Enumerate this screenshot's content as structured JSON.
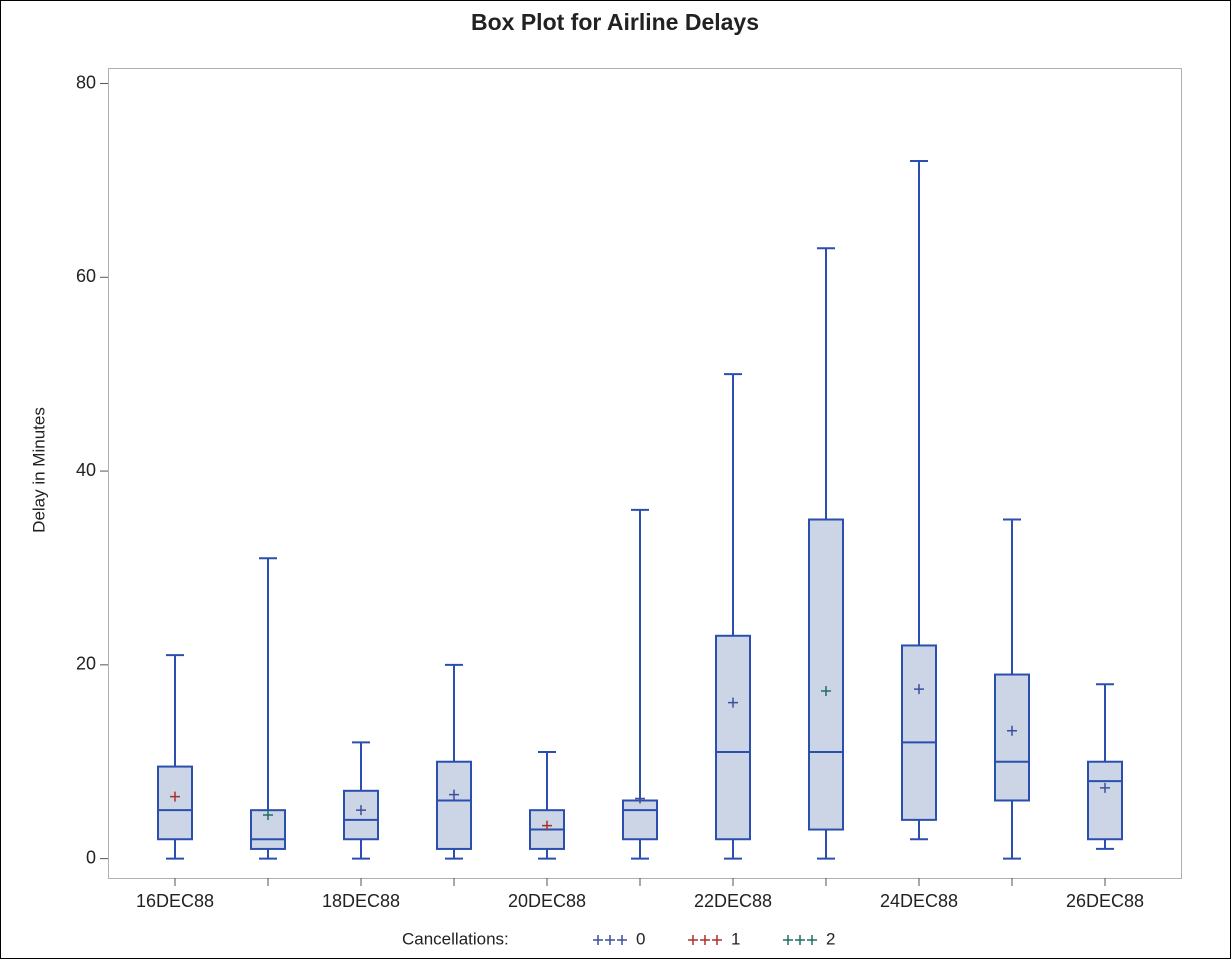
{
  "chart_data": {
    "type": "box",
    "title": "Box Plot for Airline Delays",
    "y_label": "Delay in Minutes",
    "categories": [
      "16DEC88",
      null,
      "18DEC88",
      null,
      "20DEC88",
      null,
      "22DEC88",
      null,
      "24DEC88",
      null,
      "26DEC88"
    ],
    "min": [
      0,
      0,
      0,
      0,
      0,
      0,
      0,
      0,
      2,
      0,
      1
    ],
    "q1": [
      2,
      1,
      2,
      1,
      1,
      2,
      2,
      3,
      4,
      6,
      2
    ],
    "median": [
      5,
      2,
      4,
      6,
      3,
      5,
      11,
      11,
      12,
      10,
      8
    ],
    "q3": [
      9.5,
      5,
      7,
      10,
      5,
      6,
      23,
      35,
      22,
      19,
      10
    ],
    "max": [
      21,
      31,
      12,
      20,
      11,
      36,
      50,
      63,
      72,
      35,
      18
    ],
    "mean": [
      6.4,
      4.5,
      5,
      6.6,
      3.4,
      6.2,
      16.1,
      17.3,
      17.5,
      13.2,
      7.3
    ],
    "cancellations": [
      1,
      2,
      0,
      0,
      1,
      0,
      0,
      2,
      0,
      0,
      0
    ],
    "legend_title": "Cancellations:",
    "groups": [
      {
        "name": "0",
        "color": "#3c4f9c"
      },
      {
        "name": "1",
        "color": "#a8322a"
      },
      {
        "name": "2",
        "color": "#1e7060"
      }
    ],
    "box_color": "#2a4fae",
    "box_fill": "#cbd5e6",
    "ylim": [
      -2,
      81.6
    ],
    "yticks": [
      0,
      20,
      40,
      60,
      80
    ]
  }
}
